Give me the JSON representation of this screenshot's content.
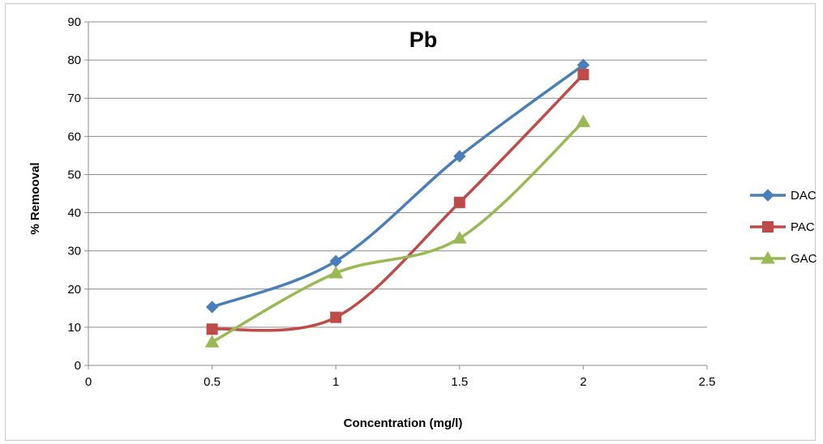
{
  "chart_data": {
    "type": "line",
    "title": "Pb",
    "xlabel": "Concentration (mg/l)",
    "ylabel": "% Remooval",
    "xlim": [
      0,
      2.5
    ],
    "ylim": [
      0,
      90
    ],
    "x_ticks": [
      "0",
      "0.5",
      "1",
      "1.5",
      "2",
      "2.5"
    ],
    "y_ticks": [
      "0",
      "10",
      "20",
      "30",
      "40",
      "50",
      "60",
      "70",
      "80",
      "90"
    ],
    "grid": true,
    "smooth": true,
    "legend_position": "right",
    "series": [
      {
        "name": "DAC",
        "color": "#4a7ebb",
        "marker": "diamond",
        "x": [
          0.5,
          1,
          1.5,
          2
        ],
        "y": [
          15.3,
          27.3,
          54.8,
          78.7
        ]
      },
      {
        "name": "PAC",
        "color": "#be4b48",
        "marker": "square",
        "x": [
          0.5,
          1,
          1.5,
          2
        ],
        "y": [
          9.5,
          12.6,
          42.7,
          76.2
        ]
      },
      {
        "name": "GAC",
        "color": "#98b954",
        "marker": "triangle",
        "x": [
          0.5,
          1,
          1.5,
          2
        ],
        "y": [
          6.1,
          24.2,
          33.3,
          63.8
        ]
      }
    ]
  }
}
